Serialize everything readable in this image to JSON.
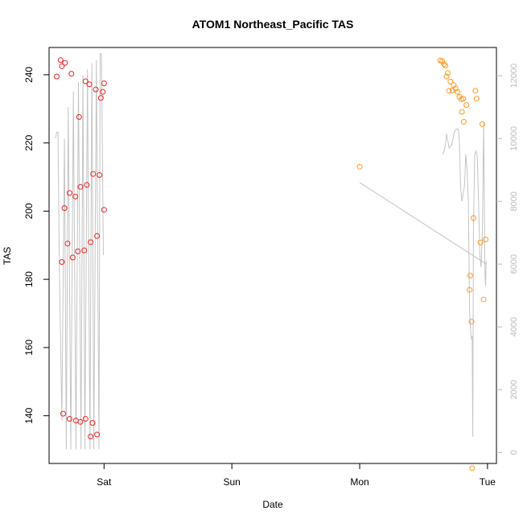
{
  "chart_data": {
    "type": "scatter",
    "title": "ATOM1 Northeast_Pacific TAS",
    "xlabel": "Date",
    "ylabel": "TAS",
    "x_unit": "days",
    "x_ticks": [
      {
        "label": "Sat",
        "value": 1.0
      },
      {
        "label": "Sun",
        "value": 2.0
      },
      {
        "label": "Mon",
        "value": 3.0
      },
      {
        "label": "Tue",
        "value": 4.0
      }
    ],
    "xlim": [
      0.57,
      4.07
    ],
    "ylim": [
      126,
      248
    ],
    "y_ticks": [
      140,
      160,
      180,
      200,
      220,
      240
    ],
    "y2_ticks": [
      0,
      2000,
      4000,
      6000,
      8000,
      10000,
      12000
    ],
    "y2lim": [
      -350,
      12900
    ],
    "grid": false,
    "legend": "none",
    "colors": {
      "series_a": "#ee2222",
      "series_b": "#ff9922",
      "altitude_line": "#c4c4c4",
      "right_axis": "#bbbbbb",
      "axis": "#000000"
    },
    "series": [
      {
        "color": "#ee2222",
        "points": [
          [
            0.63,
            239.5
          ],
          [
            0.66,
            244.3
          ],
          [
            0.67,
            242.5
          ],
          [
            0.695,
            243.5
          ],
          [
            0.745,
            240.3
          ],
          [
            0.805,
            227.6
          ],
          [
            0.855,
            238.1
          ],
          [
            0.885,
            237.2
          ],
          [
            0.935,
            235.7
          ],
          [
            0.975,
            233.2
          ],
          [
            0.99,
            235.0
          ],
          [
            1.0,
            237.5
          ],
          [
            0.67,
            185.1
          ],
          [
            0.69,
            200.9
          ],
          [
            0.715,
            190.5
          ],
          [
            0.73,
            205.3
          ],
          [
            0.755,
            186.4
          ],
          [
            0.775,
            204.3
          ],
          [
            0.795,
            188.2
          ],
          [
            0.815,
            207.1
          ],
          [
            0.845,
            188.5
          ],
          [
            0.865,
            207.7
          ],
          [
            0.895,
            190.9
          ],
          [
            0.915,
            210.9
          ],
          [
            0.945,
            192.7
          ],
          [
            0.965,
            210.6
          ],
          [
            1.0,
            200.4
          ],
          [
            0.68,
            140.6
          ],
          [
            0.73,
            139.1
          ],
          [
            0.78,
            138.6
          ],
          [
            0.815,
            138.2
          ],
          [
            0.855,
            139.1
          ],
          [
            0.895,
            133.9
          ],
          [
            0.91,
            137.9
          ],
          [
            0.945,
            134.5
          ]
        ]
      },
      {
        "color": "#ff9922",
        "points": [
          [
            3.0,
            213.0
          ],
          [
            3.63,
            244.2
          ],
          [
            3.645,
            244.0
          ],
          [
            3.66,
            243.1
          ],
          [
            3.67,
            242.7
          ],
          [
            3.68,
            239.5
          ],
          [
            3.69,
            240.5
          ],
          [
            3.7,
            235.3
          ],
          [
            3.71,
            238.0
          ],
          [
            3.725,
            235.4
          ],
          [
            3.735,
            237.0
          ],
          [
            3.75,
            236.0
          ],
          [
            3.765,
            235.0
          ],
          [
            3.78,
            233.5
          ],
          [
            3.795,
            232.8
          ],
          [
            3.81,
            233.0
          ],
          [
            3.8,
            229.1
          ],
          [
            3.815,
            226.2
          ],
          [
            3.835,
            231.1
          ],
          [
            3.86,
            176.9
          ],
          [
            3.865,
            181.1
          ],
          [
            3.875,
            167.6
          ],
          [
            3.88,
            124.6
          ],
          [
            3.89,
            198.0
          ],
          [
            3.905,
            235.3
          ],
          [
            3.915,
            233.0
          ],
          [
            3.945,
            190.8
          ],
          [
            3.96,
            225.5
          ],
          [
            3.97,
            174.1
          ],
          [
            3.985,
            191.7
          ]
        ]
      }
    ],
    "altitude_line": {
      "axis": "right",
      "x": [
        0.62,
        0.63,
        0.64,
        0.65,
        0.67,
        0.69,
        0.705,
        0.72,
        0.74,
        0.76,
        0.78,
        0.8,
        0.82,
        0.835,
        0.85,
        0.87,
        0.89,
        0.905,
        0.92,
        0.94,
        0.96,
        0.97,
        0.98,
        0.995,
        1.0,
        3.65,
        3.66,
        3.67,
        3.68,
        3.7,
        3.72,
        3.74,
        3.755,
        3.77,
        3.775,
        3.78,
        3.79,
        3.8,
        3.82,
        3.83,
        3.84,
        3.85,
        3.86,
        3.87,
        3.875,
        3.88,
        3.885,
        3.89,
        3.9,
        3.91,
        3.92,
        3.93,
        3.94,
        3.95,
        3.96,
        3.97,
        3.98,
        3.985,
        3.99,
        3.0,
        3.99
      ],
      "y": [
        10000,
        10200,
        10200,
        6000,
        1000,
        10000,
        100,
        11000,
        100,
        11500,
        100,
        11800,
        100,
        12000,
        100,
        12200,
        100,
        12400,
        100,
        12500,
        100,
        12700,
        12700,
        6300,
        6300,
        9500,
        9600,
        9800,
        10150,
        9700,
        9800,
        10200,
        10300,
        10300,
        10200,
        9900,
        8400,
        8000,
        8500,
        9500,
        9000,
        8000,
        4500,
        3800,
        3600,
        3700,
        500,
        7200,
        9500,
        9600,
        9400,
        8000,
        6300,
        5900,
        7000,
        10500,
        5700,
        5300,
        6100,
        8600,
        6000
      ],
      "segments": [
        [
          0,
          24
        ],
        [
          25,
          58
        ],
        [
          59,
          60
        ]
      ]
    }
  }
}
